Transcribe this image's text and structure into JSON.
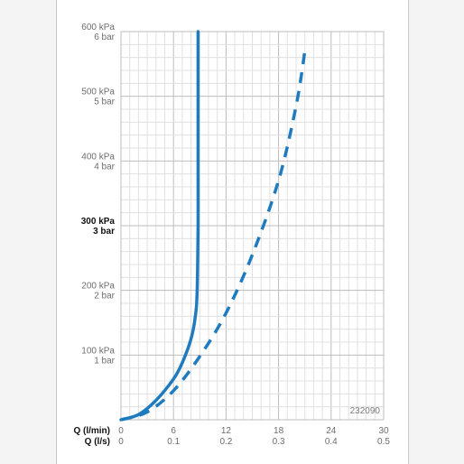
{
  "colors": {
    "series": "#1f7bc0",
    "grid_major": "#bdbdbd",
    "grid_minor": "#e0e0e0",
    "background_band": "#f4f4f4"
  },
  "reference_code": "232090",
  "chart_data": {
    "type": "line",
    "title": "",
    "xlabel": "",
    "ylabel": "",
    "x_axes": [
      {
        "label": "Q (l/min)",
        "ticks": [
          "0",
          "6",
          "12",
          "18",
          "24",
          "30"
        ],
        "range": [
          0,
          30
        ]
      },
      {
        "label": "Q (l/s)",
        "ticks": [
          "0",
          "0.1",
          "0.2",
          "0.3",
          "0.4",
          "0.5"
        ],
        "range": [
          0,
          0.5
        ]
      }
    ],
    "y_ticks": [
      {
        "value": 100,
        "kpa": "100 kPa",
        "bar": "1 bar",
        "bold": false
      },
      {
        "value": 200,
        "kpa": "200 kPa",
        "bar": "2 bar",
        "bold": false
      },
      {
        "value": 300,
        "kpa": "300 kPa",
        "bar": "3 bar",
        "bold": true
      },
      {
        "value": 400,
        "kpa": "400 kPa",
        "bar": "4 bar",
        "bold": false
      },
      {
        "value": 500,
        "kpa": "500 kPa",
        "bar": "5 bar",
        "bold": false
      },
      {
        "value": 600,
        "kpa": "600 kPa",
        "bar": "6 bar",
        "bold": false
      }
    ],
    "ylim": [
      0,
      600
    ],
    "xlim": [
      0,
      30
    ],
    "grid": true,
    "series": [
      {
        "style": "solid",
        "points": [
          [
            0,
            0
          ],
          [
            2,
            8
          ],
          [
            4,
            30
          ],
          [
            6,
            63
          ],
          [
            7,
            88
          ],
          [
            8,
            125
          ],
          [
            8.5,
            160
          ],
          [
            8.7,
            200
          ],
          [
            8.8,
            300
          ],
          [
            8.8,
            400
          ],
          [
            8.8,
            500
          ],
          [
            8.8,
            600
          ]
        ]
      },
      {
        "style": "dashed",
        "points": [
          [
            0,
            0
          ],
          [
            3,
            12
          ],
          [
            6,
            45
          ],
          [
            9,
            98
          ],
          [
            12,
            165
          ],
          [
            15,
            255
          ],
          [
            18,
            370
          ],
          [
            20,
            485
          ],
          [
            21,
            570
          ]
        ]
      }
    ]
  }
}
